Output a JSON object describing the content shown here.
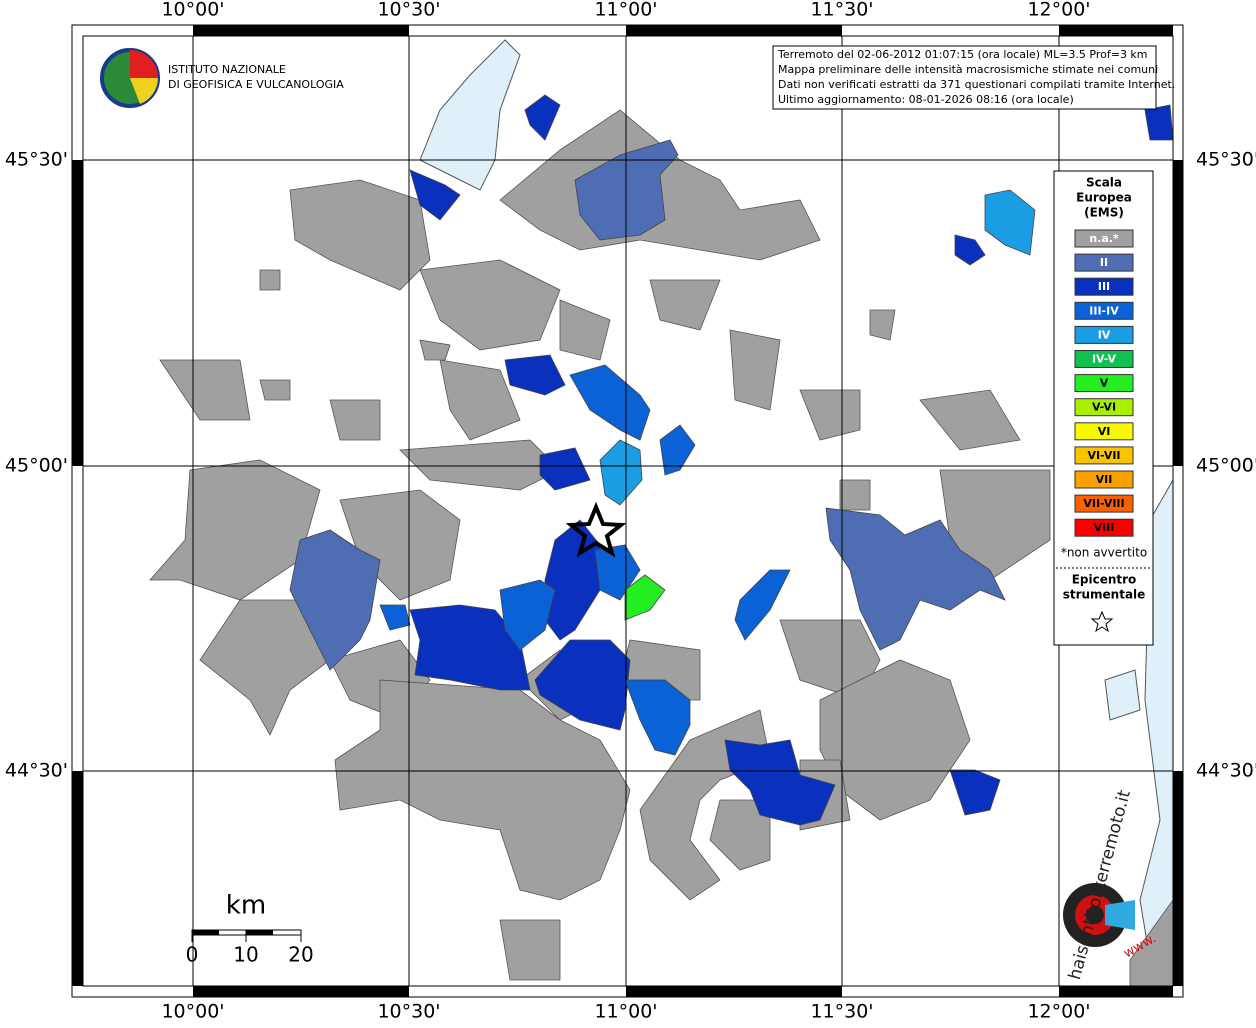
{
  "map": {
    "lon_labels": [
      "10°00'",
      "10°30'",
      "11°00'",
      "11°30'",
      "12°00'"
    ],
    "lat_labels": [
      "45°30'",
      "45°00'",
      "44°30'"
    ],
    "info": [
      "Terremoto del 02-06-2012 01:07:15 (ora locale) ML=3.5 Prof=3 km",
      "Mappa preliminare delle intensità macrosismiche stimate nei comuni",
      "Dati non verificati estratti da 371 questionari compilati tramite Internet.",
      "Ultimo aggiornamento: 08-01-2026 08:16 (ora locale)"
    ],
    "legend": {
      "title": [
        "Scala",
        "Europea",
        "(EMS)"
      ],
      "classes": [
        {
          "label": "n.a.*",
          "color": "#a0a0a0"
        },
        {
          "label": "II",
          "color": "#4f6db3"
        },
        {
          "label": "III",
          "color": "#0a30be"
        },
        {
          "label": "III-IV",
          "color": "#0a62d6"
        },
        {
          "label": "IV",
          "color": "#1a9de3"
        },
        {
          "label": "IV-V",
          "color": "#10c050"
        },
        {
          "label": "V",
          "color": "#22ee22"
        },
        {
          "label": "V-VI",
          "color": "#a8f000"
        },
        {
          "label": "VI",
          "color": "#f8f800"
        },
        {
          "label": "VI-VII",
          "color": "#f8c400"
        },
        {
          "label": "VII",
          "color": "#f8a000"
        },
        {
          "label": "VII-VIII",
          "color": "#f86000"
        },
        {
          "label": "VIII",
          "color": "#f80000"
        }
      ],
      "note": "*non avvertito",
      "epicenter": [
        "Epicentro",
        "strumentale"
      ]
    },
    "scale": {
      "unit": "km",
      "labels": [
        "0",
        "10",
        "20"
      ]
    },
    "ingv": [
      "ISTITUTO NAZIONALE",
      "DI GEOFISICA E VULCANOLOGIA"
    ],
    "hst": {
      "site": "haisentitoilterremoto.it",
      "www": "www."
    }
  }
}
